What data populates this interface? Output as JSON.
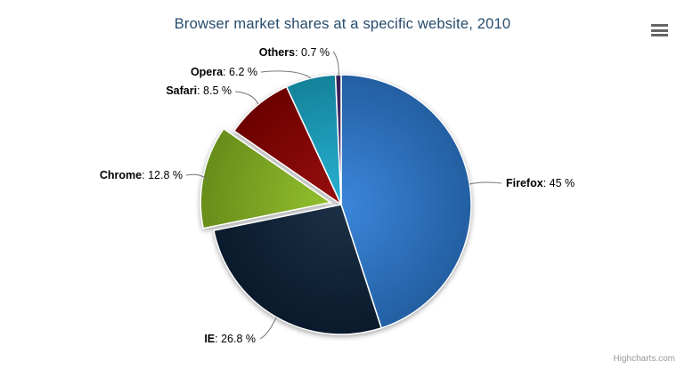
{
  "chart_data": {
    "type": "pie",
    "title": "Browser market shares at a specific website, 2010",
    "unit": "%",
    "legend": "none",
    "grid": "off",
    "points": [
      {
        "name": "Firefox",
        "value": 45.0,
        "value_label": "45 %",
        "color": "#2f7ed8",
        "sliced": false
      },
      {
        "name": "IE",
        "value": 26.8,
        "value_label": "26.8 %",
        "color": "#0d233a",
        "sliced": false
      },
      {
        "name": "Chrome",
        "value": 12.8,
        "value_label": "12.8 %",
        "color": "#8bbc21",
        "sliced": true
      },
      {
        "name": "Safari",
        "value": 8.5,
        "value_label": "8.5 %",
        "color": "#910000",
        "sliced": false
      },
      {
        "name": "Opera",
        "value": 6.2,
        "value_label": "6.2 %",
        "color": "#1aadce",
        "sliced": false
      },
      {
        "name": "Others",
        "value": 0.7,
        "value_label": "0.7 %",
        "color": "#492970",
        "sliced": false
      }
    ],
    "label_separator": ": "
  },
  "context_button": {
    "icon": "hamburger-icon"
  },
  "credits": {
    "label": "Highcharts.com"
  },
  "colors": {
    "title": "#274b6d",
    "label_text": "#000000",
    "connector": "#777777",
    "slice_border": "#ffffff",
    "credits_text": "#999999",
    "context_icon": "#666666"
  }
}
